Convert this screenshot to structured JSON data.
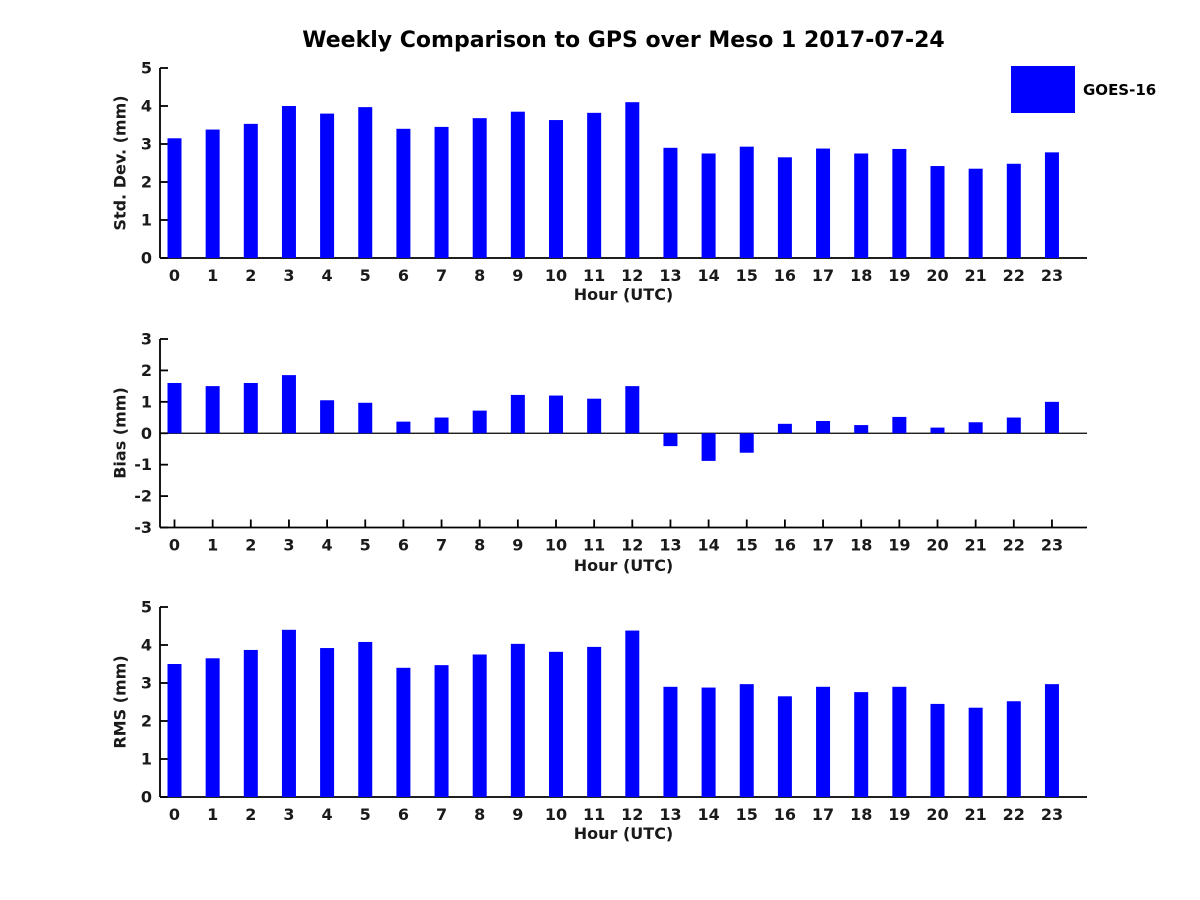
{
  "figure": {
    "title": "Weekly Comparison to GPS over Meso 1 2017-07-24",
    "background_color": "#ffffff",
    "axis_color": "#000000",
    "text_color": "#1a1a1a"
  },
  "legend": {
    "label": "GOES-16",
    "swatch_color": "#0000ff",
    "position": "top-right"
  },
  "chart_data": [
    {
      "type": "bar",
      "series_name": "GOES-16",
      "ylabel": "Std. Dev. (mm)",
      "xlabel": "Hour (UTC)",
      "categories": [
        "0",
        "1",
        "2",
        "3",
        "4",
        "5",
        "6",
        "7",
        "8",
        "9",
        "10",
        "11",
        "12",
        "13",
        "14",
        "15",
        "16",
        "17",
        "18",
        "19",
        "20",
        "21",
        "22",
        "23"
      ],
      "values": [
        3.15,
        3.38,
        3.53,
        4.0,
        3.8,
        3.97,
        3.4,
        3.45,
        3.68,
        3.85,
        3.63,
        3.82,
        4.1,
        2.9,
        2.75,
        2.93,
        2.65,
        2.88,
        2.75,
        2.87,
        2.42,
        2.35,
        2.48,
        2.78
      ],
      "ylim": [
        0,
        5
      ],
      "yticks": [
        0,
        1,
        2,
        3,
        4,
        5
      ],
      "bar_color": "#0000ff",
      "grid": false,
      "legend_position": "upper right outside"
    },
    {
      "type": "bar",
      "series_name": "GOES-16",
      "ylabel": "Bias (mm)",
      "xlabel": "Hour (UTC)",
      "categories": [
        "0",
        "1",
        "2",
        "3",
        "4",
        "5",
        "6",
        "7",
        "8",
        "9",
        "10",
        "11",
        "12",
        "13",
        "14",
        "15",
        "16",
        "17",
        "18",
        "19",
        "20",
        "21",
        "22",
        "23"
      ],
      "values": [
        1.6,
        1.5,
        1.6,
        1.85,
        1.05,
        0.97,
        0.37,
        0.5,
        0.72,
        1.22,
        1.2,
        1.1,
        1.5,
        -0.41,
        -0.88,
        -0.62,
        0.3,
        0.39,
        0.26,
        0.52,
        0.18,
        0.35,
        0.5,
        1.0
      ],
      "ylim": [
        -3,
        3
      ],
      "yticks": [
        -3,
        -2,
        -1,
        0,
        1,
        2,
        3
      ],
      "bar_color": "#0000ff",
      "grid": false,
      "zero_line": true
    },
    {
      "type": "bar",
      "series_name": "GOES-16",
      "ylabel": "RMS (mm)",
      "xlabel": "Hour (UTC)",
      "categories": [
        "0",
        "1",
        "2",
        "3",
        "4",
        "5",
        "6",
        "7",
        "8",
        "9",
        "10",
        "11",
        "12",
        "13",
        "14",
        "15",
        "16",
        "17",
        "18",
        "19",
        "20",
        "21",
        "22",
        "23"
      ],
      "values": [
        3.5,
        3.65,
        3.87,
        4.4,
        3.92,
        4.08,
        3.4,
        3.47,
        3.75,
        4.03,
        3.82,
        3.95,
        4.38,
        2.9,
        2.88,
        2.97,
        2.65,
        2.9,
        2.76,
        2.9,
        2.45,
        2.35,
        2.52,
        2.97
      ],
      "ylim": [
        0,
        5
      ],
      "yticks": [
        0,
        1,
        2,
        3,
        4,
        5
      ],
      "bar_color": "#0000ff",
      "grid": false
    }
  ]
}
